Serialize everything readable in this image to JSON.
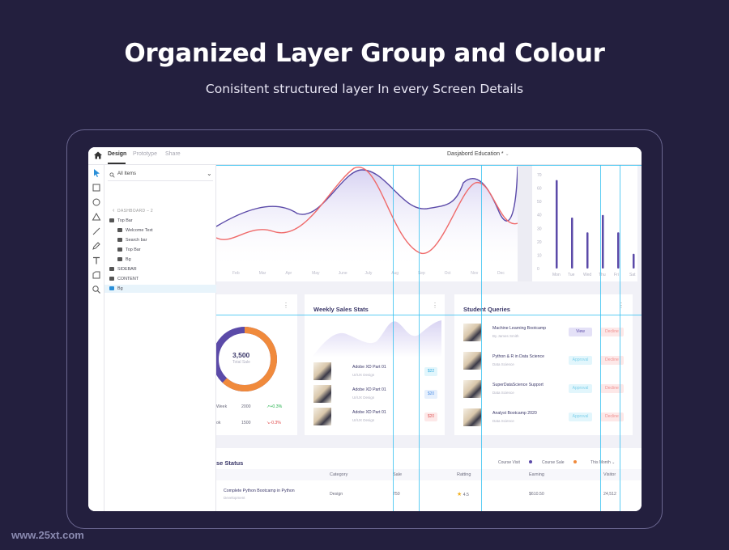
{
  "hero": {
    "title": "Organized Layer Group and Colour",
    "subtitle": "Conisitent structured layer In every Screen Details"
  },
  "colors": {
    "background": "#231f3e",
    "accent": "#5b4aa8",
    "orange": "#f08a3c",
    "red": "#ef6a6a",
    "guide": "#35c1f0"
  },
  "topbar": {
    "tabs": [
      "Design",
      "Prototype",
      "Share"
    ],
    "active_tab": "Design",
    "doc_title": "Dasjabord Education *",
    "doc_icon": "chevron-down-icon"
  },
  "toolbar": {
    "tools": [
      "pointer-icon",
      "rectangle-icon",
      "ellipse-icon",
      "triangle-icon",
      "line-icon",
      "pen-icon",
      "text-icon",
      "shape-icon",
      "zoom-icon"
    ]
  },
  "layers": {
    "search_label": "All Items",
    "section": "DASHBOARD – 2",
    "items": [
      {
        "label": "Top Bar",
        "level": 0,
        "open": true
      },
      {
        "label": "Welcome Text",
        "level": 1
      },
      {
        "label": "Search bar",
        "level": 1
      },
      {
        "label": "Top Bar",
        "level": 1
      },
      {
        "label": "Bg",
        "level": 1
      },
      {
        "label": "SIDEBAR",
        "level": 0
      },
      {
        "label": "CONTENT",
        "level": 0
      },
      {
        "label": "Bg",
        "level": 0,
        "selected": true
      }
    ]
  },
  "line_chart": {
    "months": [
      "Feb",
      "Mar",
      "Apr",
      "May",
      "June",
      "July",
      "Aug",
      "Sep",
      "Oct",
      "Nov",
      "Dec"
    ]
  },
  "bar_chart": {
    "y_ticks": [
      "70",
      "60",
      "50",
      "40",
      "30",
      "20",
      "10",
      "0"
    ],
    "days": [
      "Mon",
      "Tue",
      "Wed",
      "Thu",
      "Fri",
      "Sat"
    ],
    "values": [
      66,
      38,
      27,
      40,
      27,
      11
    ]
  },
  "sales_donut": {
    "value": "3,500",
    "label": "Total Sale",
    "rows": [
      {
        "period": "Week",
        "sale": "2000",
        "change": "+0.3%",
        "trend": "up"
      },
      {
        "period": "ok",
        "sale": "1500",
        "change": "-0.3%",
        "trend": "down"
      }
    ]
  },
  "weekly_sales": {
    "title": "Weekly Sales Stats",
    "items": [
      {
        "title": "Adobe XD Part 01",
        "sub": "UI/UX Design",
        "price": "$22"
      },
      {
        "title": "Adobe XD Part 01",
        "sub": "UI/UX Design",
        "price": "$20"
      },
      {
        "title": "Adobe XD Part 01",
        "sub": "UI/UX Design",
        "price": "$20"
      }
    ]
  },
  "student_queries": {
    "title": "Student Queries",
    "items": [
      {
        "title": "Machine Learning Bootcamp",
        "sub": "By James Smith",
        "action": "View",
        "decline": "Decline"
      },
      {
        "title": "Python & R in Data Science",
        "sub": "Data Science",
        "action": "Approval",
        "decline": "Decline"
      },
      {
        "title": "SuperDataScience Support",
        "sub": "Data Science",
        "action": "Approval",
        "decline": "Decline"
      },
      {
        "title": "Analyst Bootcamp 2020",
        "sub": "Data Science",
        "action": "Approval",
        "decline": "Decline"
      }
    ]
  },
  "course_status": {
    "title": "se Status",
    "legend": [
      "Course Visit",
      "Course Sale"
    ],
    "filter": "This Month",
    "columns": [
      "Category",
      "Sale",
      "Ratting",
      "Earning",
      "Visitor"
    ],
    "rows": [
      {
        "name": "Complete Python Bootcamp in Python",
        "sub": "Development",
        "category": "Design",
        "sale": "750",
        "rating": "4.5",
        "earning": "$610.50",
        "visitor": "24,512"
      }
    ]
  },
  "watermark": "www.25xt.com"
}
